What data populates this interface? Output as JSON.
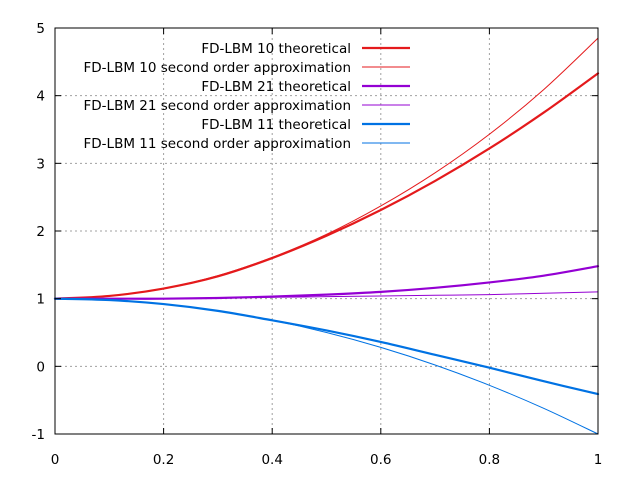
{
  "chart_data": {
    "type": "line",
    "xlim": [
      0,
      1
    ],
    "ylim": [
      -1,
      5
    ],
    "xticks": [
      "0",
      "0.2",
      "0.4",
      "0.6",
      "0.8",
      "1"
    ],
    "yticks": [
      "-1",
      "0",
      "1",
      "2",
      "3",
      "4",
      "5"
    ],
    "grid": true,
    "legend_position": "top-right",
    "series": [
      {
        "name": "FD-LBM 10 theoretical",
        "color": "#e41a1c",
        "style": "thick",
        "x": [
          0,
          0.1,
          0.2,
          0.3,
          0.4,
          0.5,
          0.6,
          0.7,
          0.8,
          0.9,
          1.0
        ],
        "y": [
          1.0,
          1.04,
          1.15,
          1.33,
          1.6,
          1.93,
          2.31,
          2.74,
          3.22,
          3.75,
          4.33
        ]
      },
      {
        "name": "FD-LBM 10 second order approximation",
        "color": "#e41a1c",
        "style": "thin",
        "x": [
          0,
          0.1,
          0.2,
          0.3,
          0.4,
          0.5,
          0.6,
          0.7,
          0.8,
          0.9,
          1.0
        ],
        "y": [
          1.0,
          1.04,
          1.15,
          1.34,
          1.61,
          1.95,
          2.37,
          2.86,
          3.43,
          4.09,
          4.85
        ]
      },
      {
        "name": "FD-LBM 21 theoretical",
        "color": "#9400d3",
        "style": "thick",
        "x": [
          0,
          0.1,
          0.2,
          0.3,
          0.4,
          0.5,
          0.6,
          0.7,
          0.8,
          0.9,
          1.0
        ],
        "y": [
          1.0,
          1.0,
          1.0,
          1.01,
          1.03,
          1.06,
          1.1,
          1.16,
          1.24,
          1.34,
          1.48
        ]
      },
      {
        "name": "FD-LBM 21 second order approximation",
        "color": "#9400d3",
        "style": "thin",
        "x": [
          0,
          0.1,
          0.2,
          0.3,
          0.4,
          0.5,
          0.6,
          0.7,
          0.8,
          0.9,
          1.0
        ],
        "y": [
          1.0,
          1.0,
          1.0,
          1.01,
          1.02,
          1.03,
          1.04,
          1.05,
          1.06,
          1.08,
          1.1
        ]
      },
      {
        "name": "FD-LBM 11 theoretical",
        "color": "#0072e3",
        "style": "thick",
        "x": [
          0,
          0.1,
          0.2,
          0.3,
          0.4,
          0.5,
          0.6,
          0.7,
          0.8,
          0.9,
          1.0
        ],
        "y": [
          1.0,
          0.98,
          0.92,
          0.82,
          0.68,
          0.53,
          0.36,
          0.17,
          -0.02,
          -0.22,
          -0.41
        ]
      },
      {
        "name": "FD-LBM 11 second order approximation",
        "color": "#0072e3",
        "style": "thin",
        "x": [
          0,
          0.1,
          0.2,
          0.3,
          0.4,
          0.5,
          0.6,
          0.7,
          0.8,
          0.9,
          1.0
        ],
        "y": [
          1.0,
          0.98,
          0.92,
          0.82,
          0.68,
          0.5,
          0.28,
          0.02,
          -0.28,
          -0.62,
          -1.0
        ]
      }
    ]
  }
}
